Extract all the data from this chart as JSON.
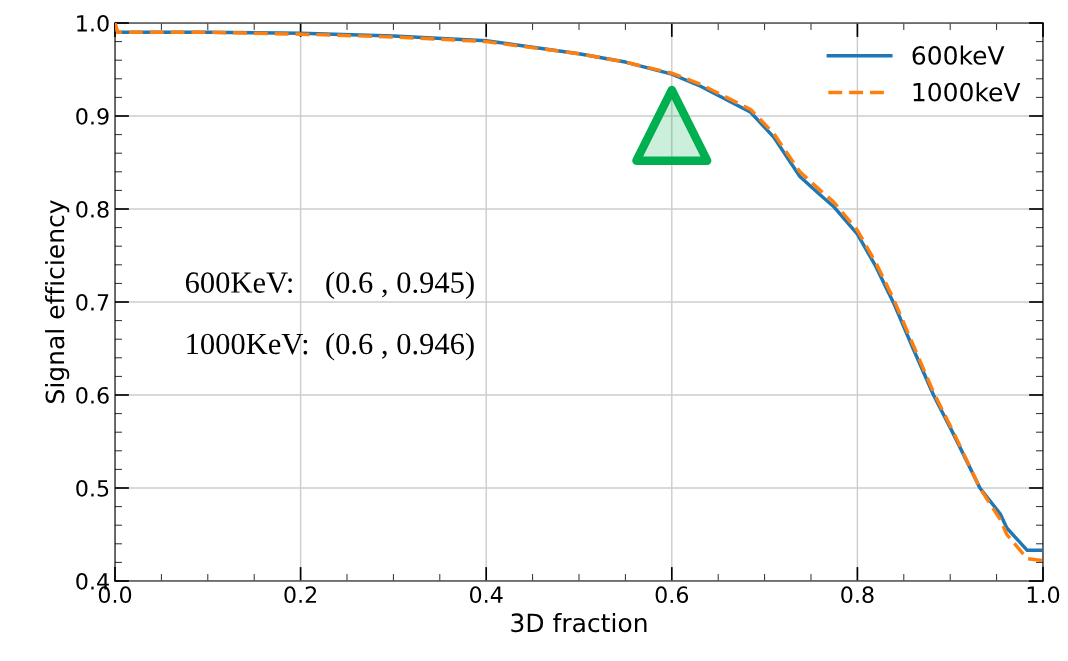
{
  "chart_data": {
    "type": "line",
    "xlabel": "3D fraction",
    "ylabel": "Signal efficiency",
    "x": [
      0,
      0.003,
      0.1,
      0.2,
      0.3,
      0.4,
      0.5,
      0.55,
      0.6,
      0.631,
      0.685,
      0.71,
      0.738,
      0.76,
      0.774,
      0.8,
      0.82,
      0.839,
      0.86,
      0.882,
      0.903,
      0.932,
      0.954,
      0.961,
      0.983,
      1.0
    ],
    "series": [
      {
        "name": "600keV",
        "color": "#1f77b4",
        "line_style": "solid",
        "values": [
          0.995,
          0.99,
          0.99,
          0.989,
          0.986,
          0.981,
          0.967,
          0.958,
          0.945,
          0.932,
          0.904,
          0.877,
          0.835,
          0.815,
          0.803,
          0.773,
          0.738,
          0.699,
          0.65,
          0.6,
          0.559,
          0.5,
          0.472,
          0.457,
          0.433,
          0.433
        ]
      },
      {
        "name": "1000keV",
        "color": "#ff7f0e",
        "line_style": "dashed",
        "values": [
          1.0,
          0.99,
          0.99,
          0.988,
          0.985,
          0.98,
          0.967,
          0.958,
          0.946,
          0.934,
          0.907,
          0.881,
          0.84,
          0.82,
          0.808,
          0.777,
          0.742,
          0.703,
          0.654,
          0.603,
          0.561,
          0.5,
          0.466,
          0.45,
          0.424,
          0.422
        ]
      },
      {
        "type": "scatter",
        "marker": "triangle",
        "color": "#00b050",
        "x": [
          0.6
        ],
        "values": [
          0.89
        ]
      }
    ],
    "annotations": [
      "600KeV:    (0.6 , 0.945)",
      "1000KeV:  (0.6 , 0.946)"
    ],
    "xlim": [
      0.0,
      1.0
    ],
    "xticks": [
      {
        "value": 0,
        "label": "0.0"
      },
      0.2,
      0.4,
      0.6,
      0.8,
      {
        "value": 1,
        "label": "1.0"
      }
    ],
    "ylim": [
      0.4,
      1.0
    ],
    "yticks": [
      0.4,
      0.5,
      0.6,
      0.7,
      0.8,
      0.9,
      {
        "value": 1,
        "label": "1.0"
      }
    ],
    "grid": true,
    "legend": "top right"
  }
}
